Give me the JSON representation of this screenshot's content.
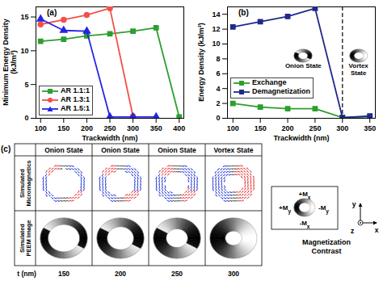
{
  "chart_data": [
    {
      "type": "line",
      "panel_label": "(a)",
      "xlabel": "Trackwidth (nm)",
      "ylabel": "Minimum Energy Density (kJ/m³)",
      "x": [
        100,
        150,
        200,
        250,
        300,
        350,
        400
      ],
      "series": [
        {
          "name": "AR 1.1:1",
          "color": "#2e9e2e",
          "marker": "square",
          "values": [
            11.4,
            11.7,
            12.2,
            12.5,
            12.9,
            13.4,
            0.2
          ]
        },
        {
          "name": "AR 1.3:1",
          "color": "#f2504b",
          "marker": "circle",
          "values": [
            13.9,
            14.6,
            15.3,
            16.3,
            0.3,
            null,
            null
          ]
        },
        {
          "name": "AR 1.5:1",
          "color": "#2424e6",
          "marker": "triangle",
          "values": [
            14.7,
            13.0,
            12.9,
            0.2,
            0.2,
            0.2,
            null
          ]
        }
      ],
      "xlim": [
        90,
        410
      ],
      "xticks": [
        100,
        150,
        200,
        250,
        300,
        350,
        400
      ],
      "ylim": [
        0,
        16.5
      ],
      "yticks": [
        0,
        5,
        10,
        15
      ],
      "legend": "lower left"
    },
    {
      "type": "line",
      "panel_label": "(b)",
      "xlabel": "Trackwidth (nm)",
      "ylabel": "Energy Density (kJ/m³)",
      "x": [
        100,
        150,
        200,
        250,
        300,
        350
      ],
      "series": [
        {
          "name": "Exchange",
          "color": "#2e9e2e",
          "marker": "square",
          "values": [
            2.0,
            1.5,
            1.3,
            1.3,
            0.1,
            0.2
          ]
        },
        {
          "name": "Demagnetization",
          "color": "#1f2a8a",
          "marker": "square",
          "values": [
            12.3,
            13.0,
            13.7,
            14.8,
            0.1,
            0.3
          ]
        }
      ],
      "xlim": [
        90,
        360
      ],
      "xticks": [
        100,
        150,
        200,
        250,
        300,
        350
      ],
      "ylim": [
        0,
        15
      ],
      "yticks": [
        0,
        2,
        4,
        6,
        8,
        10,
        12,
        14
      ],
      "legend": "lower left",
      "vline": 300,
      "annotations": [
        "Onion State",
        "Vortex State"
      ]
    }
  ],
  "panel_c": {
    "panel_label": "(c)",
    "columns": [
      "Onion State",
      "Onion State",
      "Onion State",
      "Vortex State"
    ],
    "rows": [
      "Simulated Micromagnetics",
      "Simulated PEEM Image"
    ],
    "t_label": "t (nm)",
    "t_values": [
      150,
      200,
      250,
      300
    ],
    "contrast_legend": {
      "title": "Magnetization Contrast",
      "labels": [
        "+Mx",
        "-Mx",
        "+My",
        "-My"
      ],
      "axes": [
        "x",
        "y",
        "z"
      ]
    }
  }
}
